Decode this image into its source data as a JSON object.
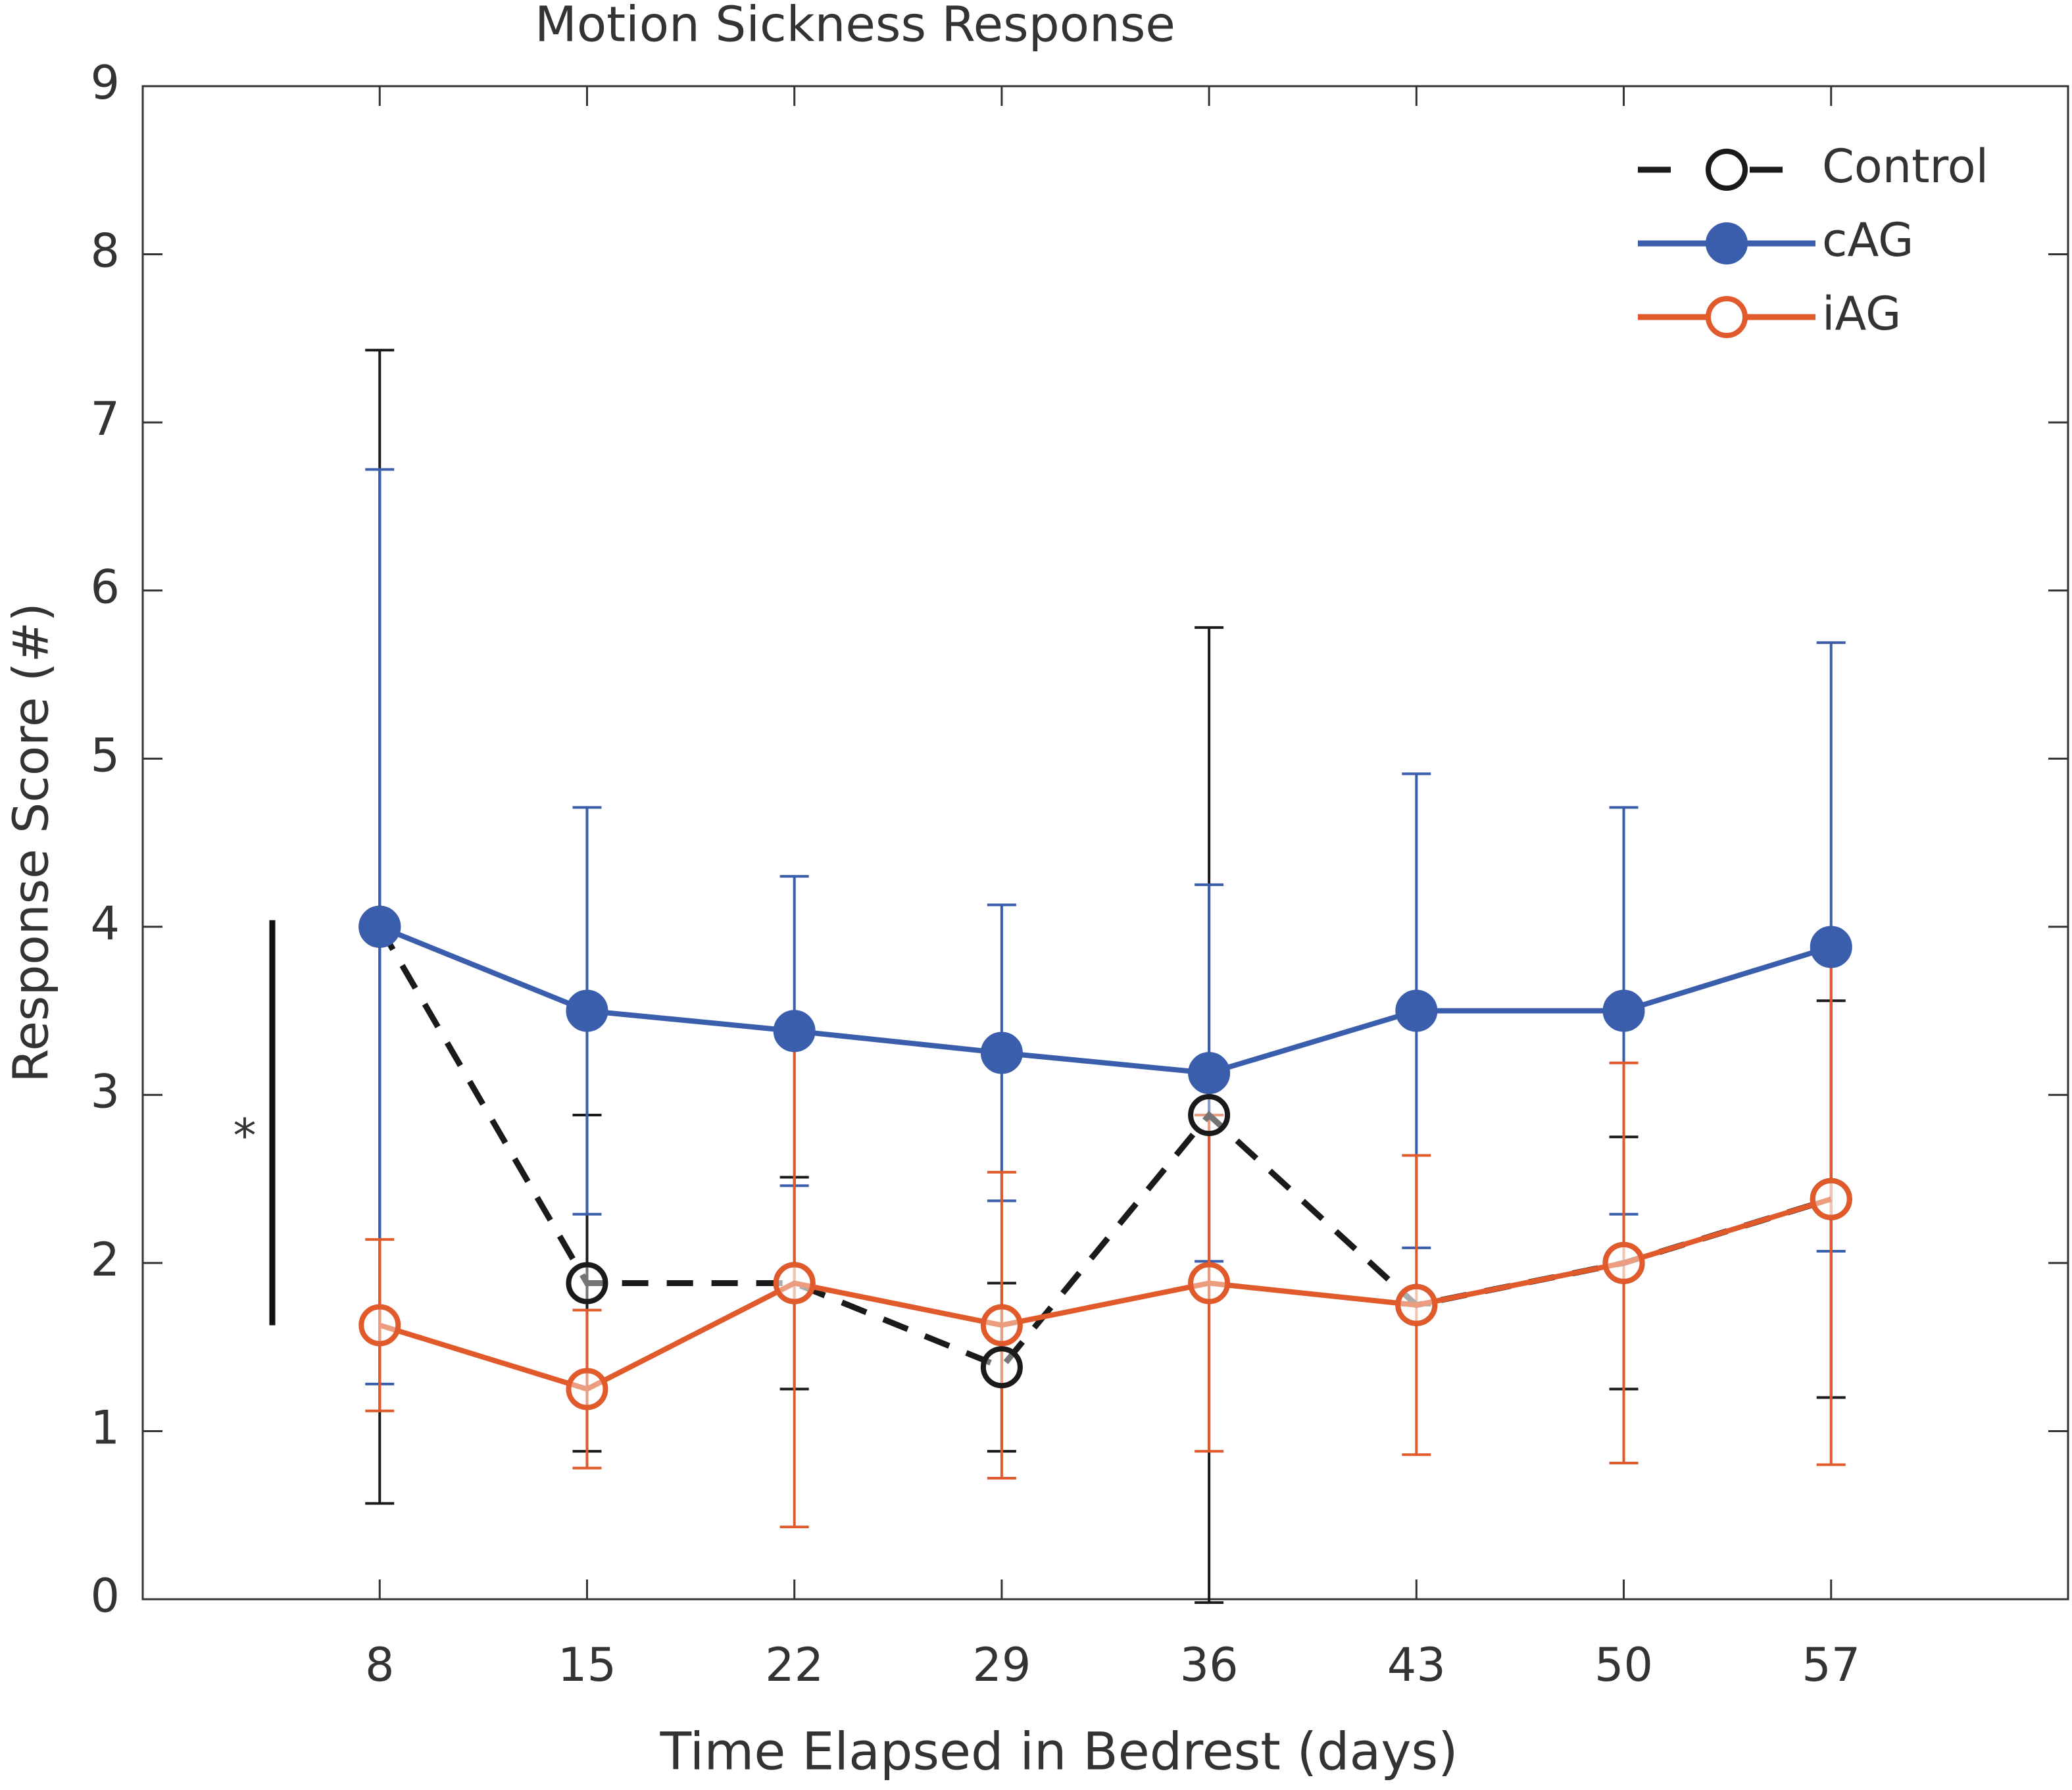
{
  "chart_data": {
    "type": "line",
    "title": "Motion Sickness Response",
    "xlabel": "Time Elapsed in Bedrest (days)",
    "ylabel": "Response Score (#)",
    "x": [
      8,
      15,
      22,
      29,
      36,
      43,
      50,
      57
    ],
    "xlim": [
      0,
      65
    ],
    "xticks": [
      8,
      15,
      22,
      29,
      36,
      43,
      50,
      57
    ],
    "ylim": [
      0,
      9
    ],
    "yticks": [
      0,
      1,
      2,
      3,
      4,
      5,
      6,
      7,
      8,
      9
    ],
    "legend": "upper right",
    "annotation": "*",
    "series": [
      {
        "name": "Control",
        "color": "#1a1a1a",
        "dashed": true,
        "filled": false,
        "values": [
          4.0,
          1.88,
          1.88,
          1.38,
          2.88,
          1.75,
          2.0,
          2.38
        ],
        "errors": [
          3.43,
          1.0,
          0.63,
          0.5,
          2.9,
          0,
          0.75,
          1.18
        ]
      },
      {
        "name": "cAG",
        "color": "#3a5eab",
        "dashed": false,
        "filled": true,
        "values": [
          4.0,
          3.5,
          3.38,
          3.25,
          3.13,
          3.5,
          3.5,
          3.88
        ],
        "errors": [
          2.72,
          1.21,
          0.92,
          0.88,
          1.12,
          1.41,
          1.21,
          1.81
        ]
      },
      {
        "name": "iAG",
        "color": "#e05a2b",
        "dashed": false,
        "filled": false,
        "values": [
          1.63,
          1.25,
          1.88,
          1.63,
          1.88,
          1.75,
          2.0,
          2.38
        ],
        "errors": [
          0.51,
          0.47,
          1.45,
          0.91,
          1.0,
          0.89,
          1.19,
          1.58
        ]
      }
    ]
  }
}
